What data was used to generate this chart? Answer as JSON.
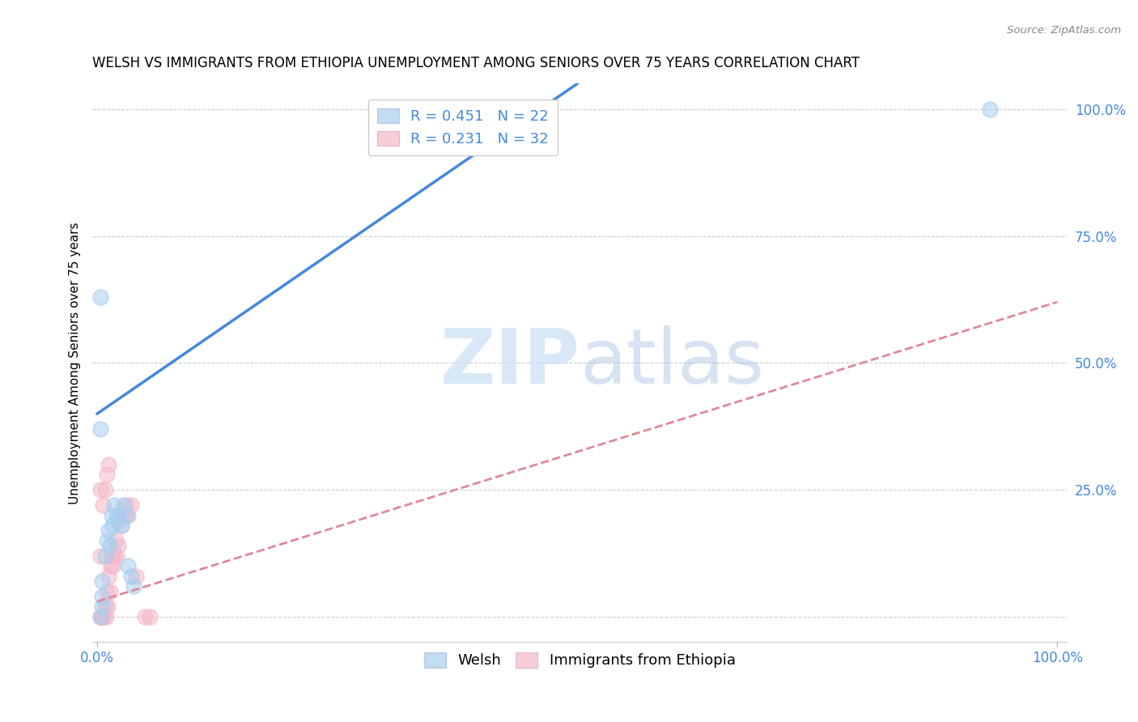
{
  "title": "WELSH VS IMMIGRANTS FROM ETHIOPIA UNEMPLOYMENT AMONG SENIORS OVER 75 YEARS CORRELATION CHART",
  "source": "Source: ZipAtlas.com",
  "ylabel": "Unemployment Among Seniors over 75 years",
  "welsh_R": 0.451,
  "welsh_N": 22,
  "ethiopia_R": 0.231,
  "ethiopia_N": 32,
  "welsh_color": "#a8cef0",
  "ethiopia_color": "#f5b8c8",
  "welsh_line_color": "#4488dd",
  "ethiopia_line_color": "#e08898",
  "watermark_zip": "ZIP",
  "watermark_atlas": "atlas",
  "welsh_x": [
    0.005,
    0.005,
    0.005,
    0.008,
    0.01,
    0.012,
    0.013,
    0.015,
    0.016,
    0.018,
    0.02,
    0.022,
    0.025,
    0.028,
    0.03,
    0.032,
    0.035,
    0.038,
    0.003,
    0.003,
    0.003,
    0.93
  ],
  "welsh_y": [
    0.04,
    0.07,
    0.02,
    0.12,
    0.15,
    0.17,
    0.14,
    0.2,
    0.18,
    0.22,
    0.2,
    0.19,
    0.18,
    0.22,
    0.2,
    0.1,
    0.08,
    0.06,
    0.37,
    0.63,
    0.0,
    1.0
  ],
  "ethiopia_x": [
    0.003,
    0.004,
    0.005,
    0.006,
    0.007,
    0.008,
    0.009,
    0.01,
    0.011,
    0.012,
    0.013,
    0.014,
    0.015,
    0.016,
    0.018,
    0.019,
    0.02,
    0.022,
    0.025,
    0.027,
    0.03,
    0.032,
    0.035,
    0.04,
    0.003,
    0.003,
    0.006,
    0.008,
    0.01,
    0.012,
    0.05,
    0.055
  ],
  "ethiopia_y": [
    0.0,
    0.0,
    0.0,
    0.0,
    0.0,
    0.02,
    0.0,
    0.05,
    0.02,
    0.08,
    0.05,
    0.1,
    0.12,
    0.1,
    0.12,
    0.15,
    0.12,
    0.14,
    0.18,
    0.2,
    0.22,
    0.2,
    0.22,
    0.08,
    0.12,
    0.25,
    0.22,
    0.25,
    0.28,
    0.3,
    0.0,
    0.0
  ],
  "welsh_line_x0": 0.0,
  "welsh_line_y0": 0.4,
  "welsh_line_x1": 0.5,
  "welsh_line_y1": 1.05,
  "eth_line_x0": 0.0,
  "eth_line_y0": 0.03,
  "eth_line_x1": 1.0,
  "eth_line_y1": 0.62,
  "xlim_min": -0.005,
  "xlim_max": 1.01,
  "ylim_min": -0.05,
  "ylim_max": 1.05,
  "xticks": [
    0.0,
    1.0
  ],
  "xtick_labels": [
    "0.0%",
    "100.0%"
  ],
  "yticks": [
    0.0,
    0.25,
    0.5,
    0.75,
    1.0
  ],
  "ytick_labels": [
    "",
    "25.0%",
    "50.0%",
    "75.0%",
    "100.0%"
  ],
  "marker_size": 180,
  "title_fontsize": 12,
  "axis_label_fontsize": 11,
  "tick_fontsize": 12,
  "legend_fontsize": 13,
  "tick_color": "#4488dd"
}
